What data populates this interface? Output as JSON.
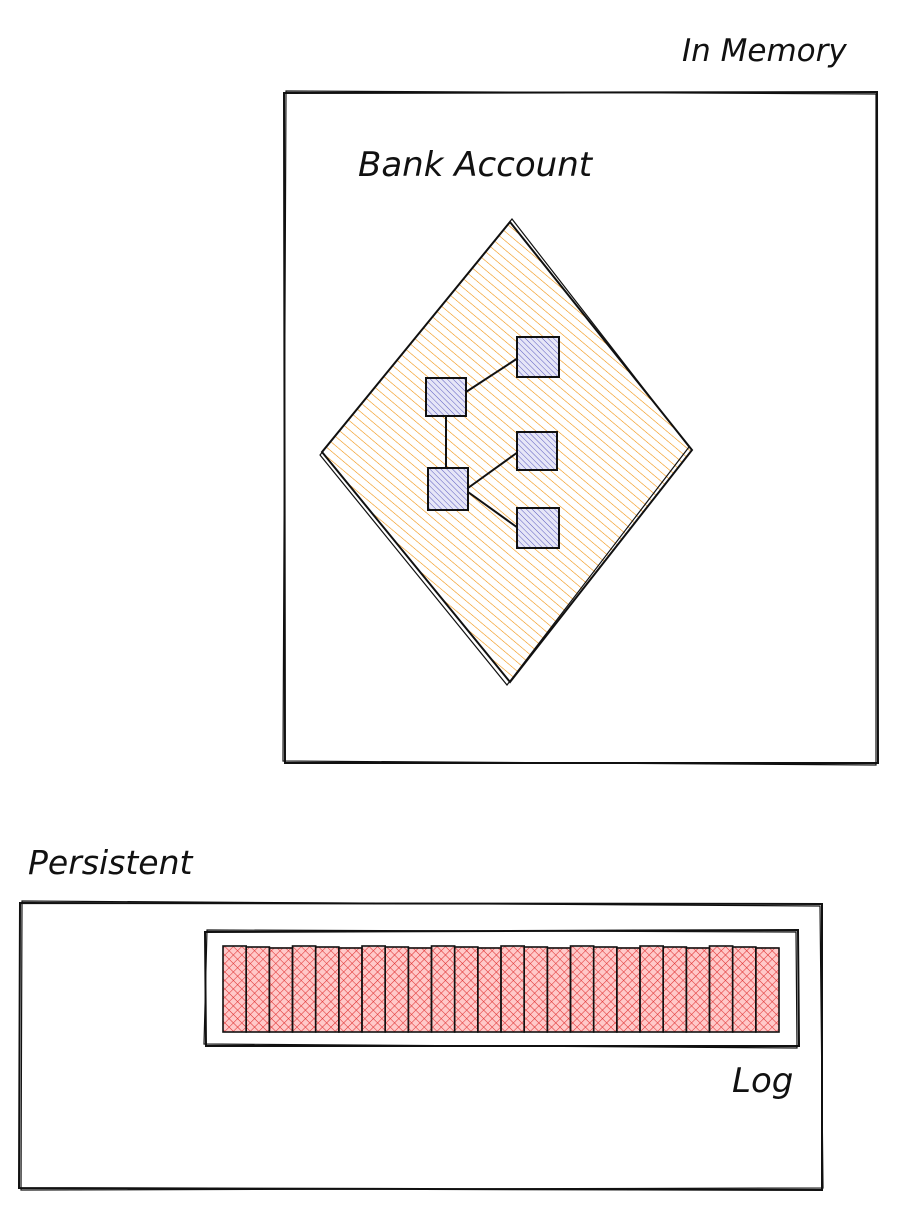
{
  "labels": {
    "in_memory": "In Memory",
    "bank_account": "Bank Account",
    "persistent": "Persistent",
    "log": "Log"
  },
  "colors": {
    "stroke": "#111111",
    "diamond_hatch": "#f08c00",
    "node_fill": "#8e8ec8",
    "log_hatch": "#e03131",
    "log_bg": "#ffc9c9"
  },
  "aggregate_nodes": 5,
  "log_entries": 24
}
